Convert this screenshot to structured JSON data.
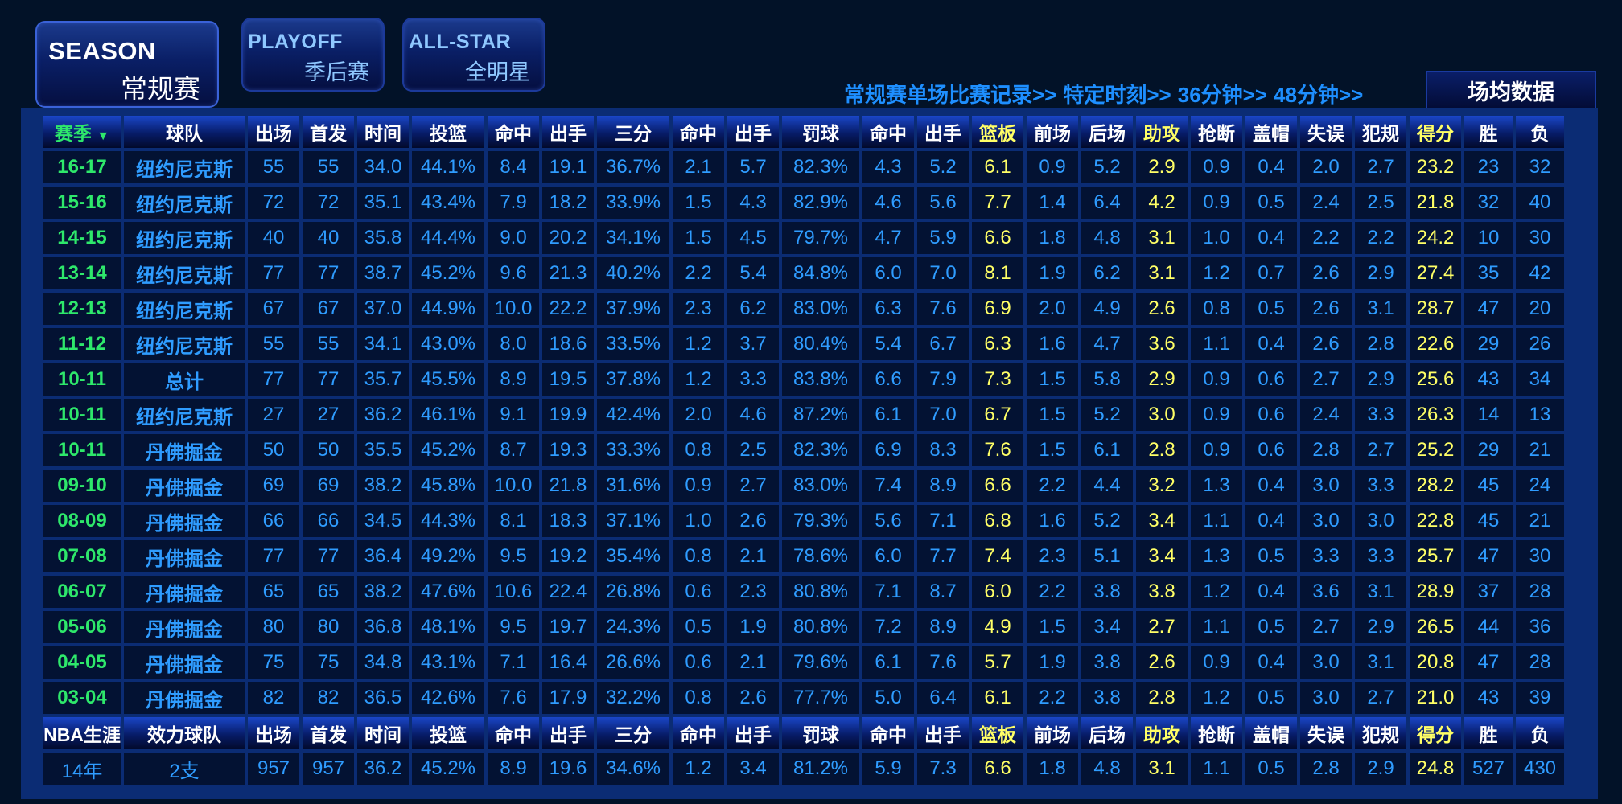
{
  "tabs": {
    "season": {
      "en": "SEASON",
      "cn": "常规赛"
    },
    "playoff": {
      "en": "PLAYOFF",
      "cn": "季后赛"
    },
    "allstar": {
      "en": "ALL-STAR",
      "cn": "全明星"
    }
  },
  "links": [
    "常规赛单场比赛记录>>",
    "特定时刻>>",
    "36分钟>>",
    "48分钟>>"
  ],
  "avg_tab": "场均数据",
  "colors": {
    "season_green": "#2ee86b",
    "highlight_yellow": "#ffff66",
    "value_blue": "#2f9cff"
  },
  "headers": [
    "赛季",
    "球队",
    "出场",
    "首发",
    "时间",
    "投篮",
    "命中",
    "出手",
    "三分",
    "命中",
    "出手",
    "罚球",
    "命中",
    "出手",
    "篮板",
    "前场",
    "后场",
    "助攻",
    "抢断",
    "盖帽",
    "失误",
    "犯规",
    "得分",
    "胜",
    "负"
  ],
  "sort_marker": "▼",
  "rows": [
    [
      "16-17",
      "纽约尼克斯",
      "55",
      "55",
      "34.0",
      "44.1%",
      "8.4",
      "19.1",
      "36.7%",
      "2.1",
      "5.7",
      "82.3%",
      "4.3",
      "5.2",
      "6.1",
      "0.9",
      "5.2",
      "2.9",
      "0.9",
      "0.4",
      "2.0",
      "2.7",
      "23.2",
      "23",
      "32"
    ],
    [
      "15-16",
      "纽约尼克斯",
      "72",
      "72",
      "35.1",
      "43.4%",
      "7.9",
      "18.2",
      "33.9%",
      "1.5",
      "4.3",
      "82.9%",
      "4.6",
      "5.6",
      "7.7",
      "1.4",
      "6.4",
      "4.2",
      "0.9",
      "0.5",
      "2.4",
      "2.5",
      "21.8",
      "32",
      "40"
    ],
    [
      "14-15",
      "纽约尼克斯",
      "40",
      "40",
      "35.8",
      "44.4%",
      "9.0",
      "20.2",
      "34.1%",
      "1.5",
      "4.5",
      "79.7%",
      "4.7",
      "5.9",
      "6.6",
      "1.8",
      "4.8",
      "3.1",
      "1.0",
      "0.4",
      "2.2",
      "2.2",
      "24.2",
      "10",
      "30"
    ],
    [
      "13-14",
      "纽约尼克斯",
      "77",
      "77",
      "38.7",
      "45.2%",
      "9.6",
      "21.3",
      "40.2%",
      "2.2",
      "5.4",
      "84.8%",
      "6.0",
      "7.0",
      "8.1",
      "1.9",
      "6.2",
      "3.1",
      "1.2",
      "0.7",
      "2.6",
      "2.9",
      "27.4",
      "35",
      "42"
    ],
    [
      "12-13",
      "纽约尼克斯",
      "67",
      "67",
      "37.0",
      "44.9%",
      "10.0",
      "22.2",
      "37.9%",
      "2.3",
      "6.2",
      "83.0%",
      "6.3",
      "7.6",
      "6.9",
      "2.0",
      "4.9",
      "2.6",
      "0.8",
      "0.5",
      "2.6",
      "3.1",
      "28.7",
      "47",
      "20"
    ],
    [
      "11-12",
      "纽约尼克斯",
      "55",
      "55",
      "34.1",
      "43.0%",
      "8.0",
      "18.6",
      "33.5%",
      "1.2",
      "3.7",
      "80.4%",
      "5.4",
      "6.7",
      "6.3",
      "1.6",
      "4.7",
      "3.6",
      "1.1",
      "0.4",
      "2.6",
      "2.8",
      "22.6",
      "29",
      "26"
    ],
    [
      "10-11",
      "总计",
      "77",
      "77",
      "35.7",
      "45.5%",
      "8.9",
      "19.5",
      "37.8%",
      "1.2",
      "3.3",
      "83.8%",
      "6.6",
      "7.9",
      "7.3",
      "1.5",
      "5.8",
      "2.9",
      "0.9",
      "0.6",
      "2.7",
      "2.9",
      "25.6",
      "43",
      "34"
    ],
    [
      "10-11",
      "纽约尼克斯",
      "27",
      "27",
      "36.2",
      "46.1%",
      "9.1",
      "19.9",
      "42.4%",
      "2.0",
      "4.6",
      "87.2%",
      "6.1",
      "7.0",
      "6.7",
      "1.5",
      "5.2",
      "3.0",
      "0.9",
      "0.6",
      "2.4",
      "3.3",
      "26.3",
      "14",
      "13"
    ],
    [
      "10-11",
      "丹佛掘金",
      "50",
      "50",
      "35.5",
      "45.2%",
      "8.7",
      "19.3",
      "33.3%",
      "0.8",
      "2.5",
      "82.3%",
      "6.9",
      "8.3",
      "7.6",
      "1.5",
      "6.1",
      "2.8",
      "0.9",
      "0.6",
      "2.8",
      "2.7",
      "25.2",
      "29",
      "21"
    ],
    [
      "09-10",
      "丹佛掘金",
      "69",
      "69",
      "38.2",
      "45.8%",
      "10.0",
      "21.8",
      "31.6%",
      "0.9",
      "2.7",
      "83.0%",
      "7.4",
      "8.9",
      "6.6",
      "2.2",
      "4.4",
      "3.2",
      "1.3",
      "0.4",
      "3.0",
      "3.3",
      "28.2",
      "45",
      "24"
    ],
    [
      "08-09",
      "丹佛掘金",
      "66",
      "66",
      "34.5",
      "44.3%",
      "8.1",
      "18.3",
      "37.1%",
      "1.0",
      "2.6",
      "79.3%",
      "5.6",
      "7.1",
      "6.8",
      "1.6",
      "5.2",
      "3.4",
      "1.1",
      "0.4",
      "3.0",
      "3.0",
      "22.8",
      "45",
      "21"
    ],
    [
      "07-08",
      "丹佛掘金",
      "77",
      "77",
      "36.4",
      "49.2%",
      "9.5",
      "19.2",
      "35.4%",
      "0.8",
      "2.1",
      "78.6%",
      "6.0",
      "7.7",
      "7.4",
      "2.3",
      "5.1",
      "3.4",
      "1.3",
      "0.5",
      "3.3",
      "3.3",
      "25.7",
      "47",
      "30"
    ],
    [
      "06-07",
      "丹佛掘金",
      "65",
      "65",
      "38.2",
      "47.6%",
      "10.6",
      "22.4",
      "26.8%",
      "0.6",
      "2.3",
      "80.8%",
      "7.1",
      "8.7",
      "6.0",
      "2.2",
      "3.8",
      "3.8",
      "1.2",
      "0.4",
      "3.6",
      "3.1",
      "28.9",
      "37",
      "28"
    ],
    [
      "05-06",
      "丹佛掘金",
      "80",
      "80",
      "36.8",
      "48.1%",
      "9.5",
      "19.7",
      "24.3%",
      "0.5",
      "1.9",
      "80.8%",
      "7.2",
      "8.9",
      "4.9",
      "1.5",
      "3.4",
      "2.7",
      "1.1",
      "0.5",
      "2.7",
      "2.9",
      "26.5",
      "44",
      "36"
    ],
    [
      "04-05",
      "丹佛掘金",
      "75",
      "75",
      "34.8",
      "43.1%",
      "7.1",
      "16.4",
      "26.6%",
      "0.6",
      "2.1",
      "79.6%",
      "6.1",
      "7.6",
      "5.7",
      "1.9",
      "3.8",
      "2.6",
      "0.9",
      "0.4",
      "3.0",
      "3.1",
      "20.8",
      "47",
      "28"
    ],
    [
      "03-04",
      "丹佛掘金",
      "82",
      "82",
      "36.5",
      "42.6%",
      "7.6",
      "17.9",
      "32.2%",
      "0.8",
      "2.6",
      "77.7%",
      "5.0",
      "6.4",
      "6.1",
      "2.2",
      "3.8",
      "2.8",
      "1.2",
      "0.5",
      "3.0",
      "2.7",
      "21.0",
      "43",
      "39"
    ]
  ],
  "career_headers": [
    "NBA生涯",
    "效力球队",
    "出场",
    "首发",
    "时间",
    "投篮",
    "命中",
    "出手",
    "三分",
    "命中",
    "出手",
    "罚球",
    "命中",
    "出手",
    "篮板",
    "前场",
    "后场",
    "助攻",
    "抢断",
    "盖帽",
    "失误",
    "犯规",
    "得分",
    "胜",
    "负"
  ],
  "career_row": [
    "14年",
    "2支",
    "957",
    "957",
    "36.2",
    "45.2%",
    "8.9",
    "19.6",
    "34.6%",
    "1.2",
    "3.4",
    "81.2%",
    "5.9",
    "7.3",
    "6.6",
    "1.8",
    "4.8",
    "3.1",
    "1.1",
    "0.5",
    "2.8",
    "2.9",
    "24.8",
    "527",
    "430"
  ]
}
